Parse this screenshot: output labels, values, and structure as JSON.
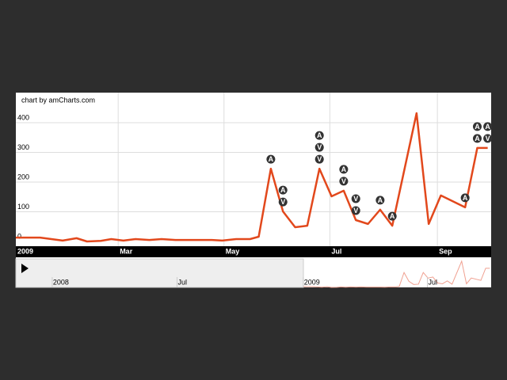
{
  "chart_data": {
    "type": "line",
    "credit": "chart by amCharts.com",
    "x": [
      0,
      14,
      27,
      35,
      41,
      49,
      55,
      62,
      69,
      77,
      84,
      92,
      100,
      107,
      113,
      119,
      127,
      135,
      140,
      147,
      154,
      161,
      168,
      175,
      182,
      189,
      196,
      203,
      210,
      217,
      231,
      238,
      245,
      259,
      266,
      272
    ],
    "values": [
      13,
      13,
      3,
      11,
      0,
      2,
      8,
      3,
      8,
      5,
      8,
      5,
      5,
      5,
      5,
      3,
      8,
      8,
      16,
      245,
      101,
      48,
      53,
      245,
      152,
      171,
      72,
      59,
      107,
      53,
      432,
      59,
      155,
      115,
      315,
      315
    ],
    "color": "#e2481c",
    "xlim": [
      0,
      274
    ],
    "xticks": [
      {
        "value": 0,
        "label": "2009"
      },
      {
        "value": 59,
        "label": "Mar"
      },
      {
        "value": 120,
        "label": "May"
      },
      {
        "value": 181,
        "label": "Jul"
      },
      {
        "value": 243,
        "label": "Sep"
      }
    ],
    "ylim": [
      0,
      500
    ],
    "yticks": [
      0,
      100,
      200,
      300,
      400
    ],
    "grid": true,
    "annotations": [
      {
        "x": 147,
        "labels": [
          "A"
        ]
      },
      {
        "x": 154,
        "labels": [
          "A",
          "V"
        ]
      },
      {
        "x": 175,
        "labels": [
          "A",
          "V",
          "V"
        ]
      },
      {
        "x": 189,
        "labels": [
          "A",
          "V"
        ]
      },
      {
        "x": 196,
        "labels": [
          "V",
          "V"
        ]
      },
      {
        "x": 210,
        "labels": [
          "A"
        ]
      },
      {
        "x": 217,
        "labels": [
          "A"
        ]
      },
      {
        "x": 259,
        "labels": [
          "A"
        ]
      },
      {
        "x": 266,
        "labels": [
          "A",
          "A"
        ]
      },
      {
        "x": 272,
        "labels": [
          "A",
          "V"
        ]
      }
    ],
    "navigator": {
      "xlim": [
        -419,
        274
      ],
      "ylim": [
        0,
        470
      ],
      "color": "#f0a090",
      "xticks": [
        {
          "value": -366,
          "label": "2008"
        },
        {
          "value": -184,
          "label": "Jul"
        },
        {
          "value": 0,
          "label": "2009"
        },
        {
          "value": 181,
          "label": "Jul"
        }
      ]
    }
  }
}
